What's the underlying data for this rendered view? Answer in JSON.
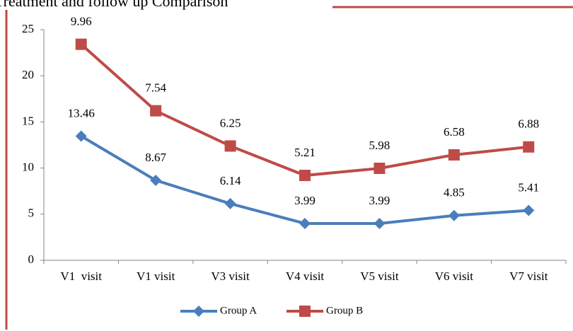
{
  "chart_data": {
    "type": "line",
    "stacked": true,
    "title": "Treatment and follow up Comparison",
    "categories": [
      "V1  visit",
      "V1 visit",
      "V3 visit",
      "V4 visit",
      "V5 visit",
      "V6 visit",
      "V7 visit"
    ],
    "series": [
      {
        "name": "Group A",
        "color": "#4a7ebb",
        "marker": "diamond",
        "values": [
          13.46,
          8.67,
          6.14,
          3.99,
          3.99,
          4.85,
          5.41
        ]
      },
      {
        "name": "Group B",
        "color": "#be4b48",
        "marker": "square",
        "values": [
          9.96,
          7.54,
          6.25,
          5.21,
          5.98,
          6.58,
          6.88
        ]
      }
    ],
    "ylim": [
      0,
      25
    ],
    "yticks": [
      0,
      5,
      10,
      15,
      20,
      25
    ],
    "grid": false,
    "legend": "bottom"
  }
}
